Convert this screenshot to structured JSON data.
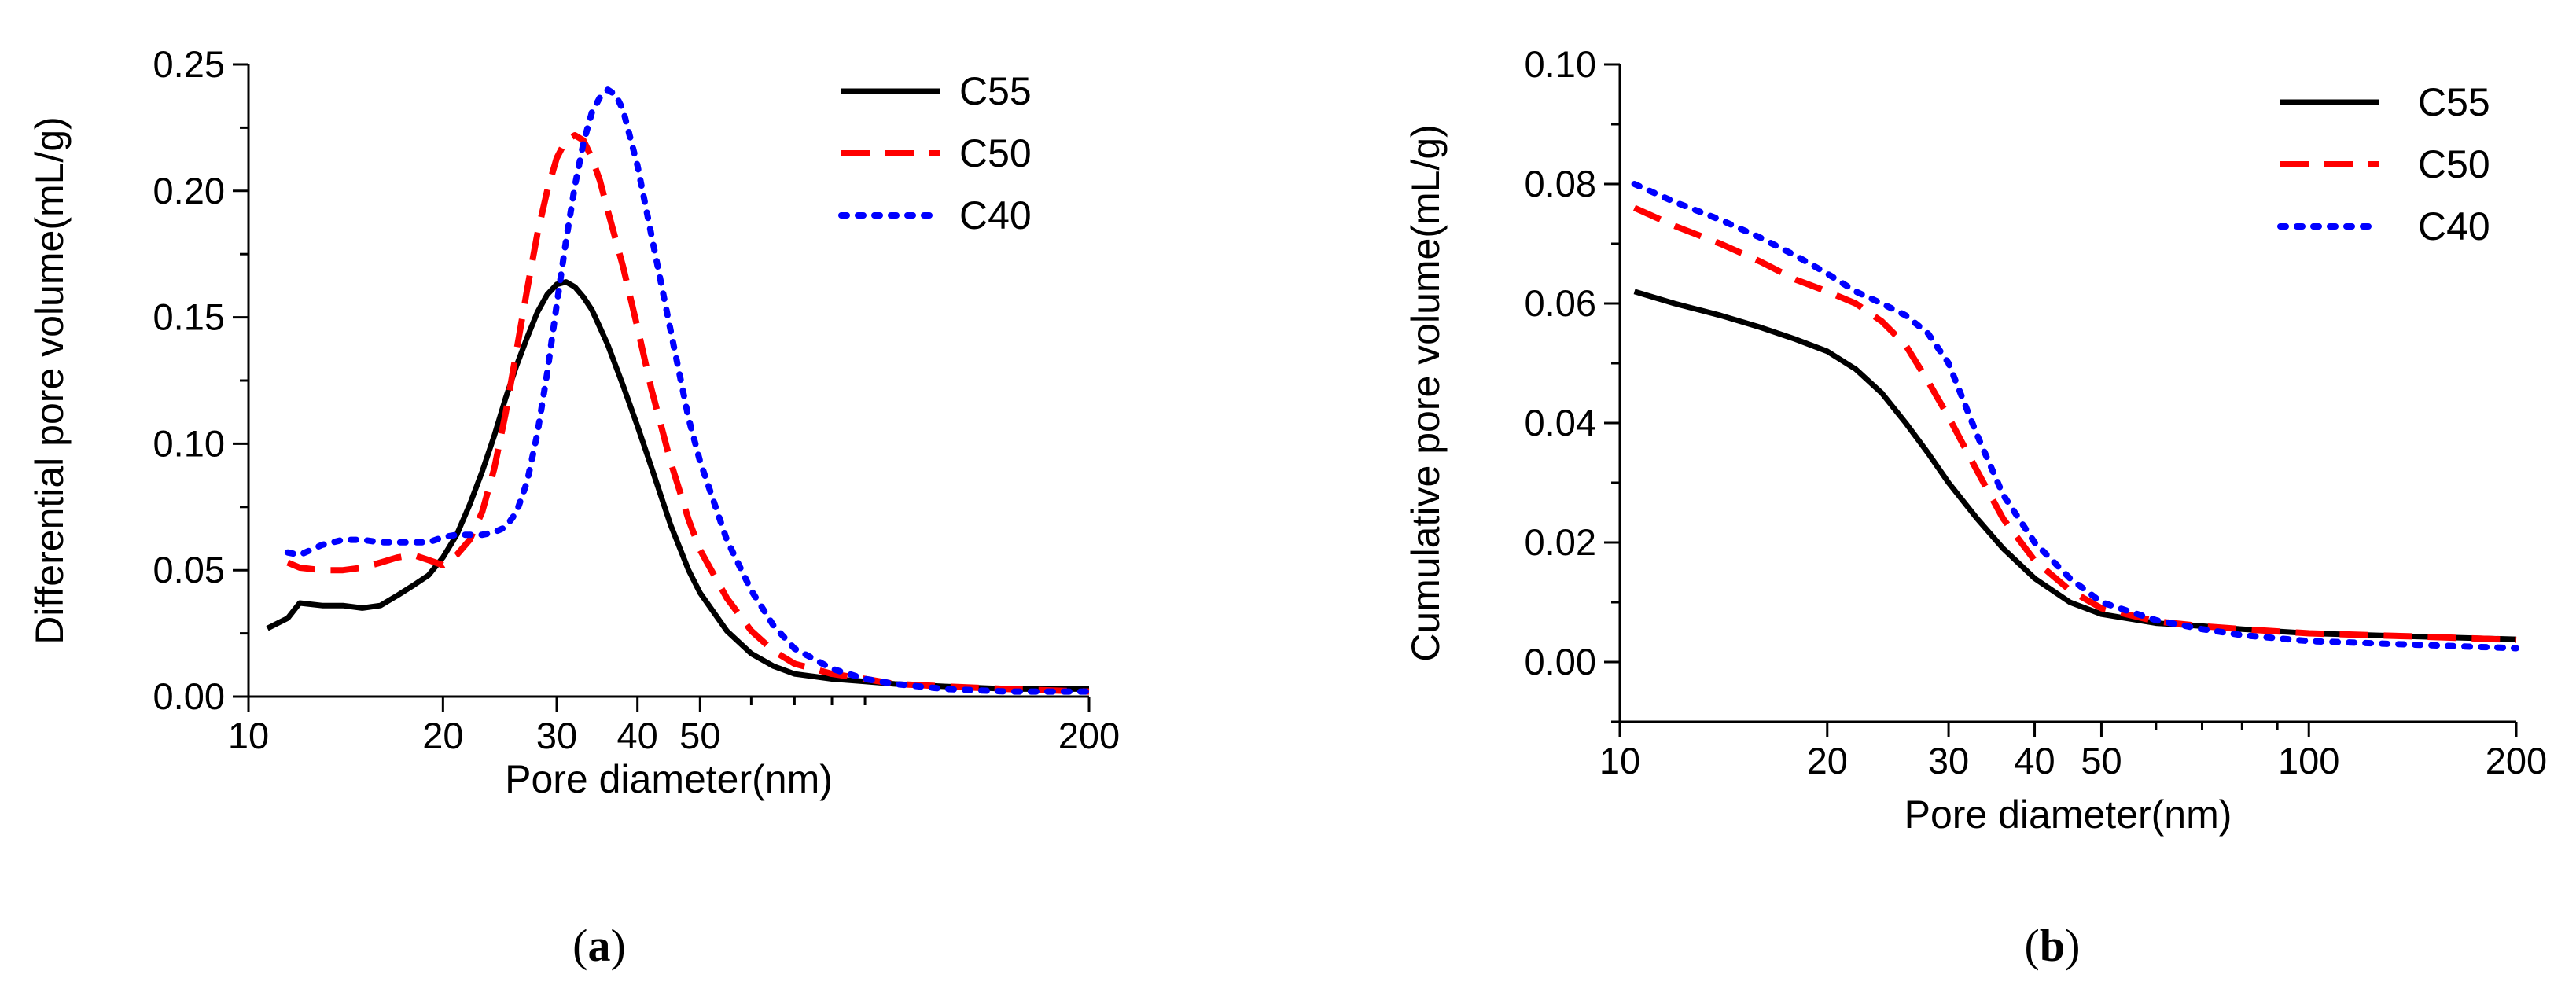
{
  "chart_data": [
    {
      "type": "line",
      "panel": "a",
      "caption": {
        "open": "(",
        "letter": "a",
        "close": ")"
      },
      "xlabel": "Pore diameter(nm)",
      "ylabel": "Differential pore volume(mL/g)",
      "xscale": "log",
      "xlim": [
        10,
        200
      ],
      "ylim": [
        0,
        0.25
      ],
      "xticks": [
        10,
        20,
        30,
        40,
        50,
        200
      ],
      "xtick_labels": [
        "10",
        "20",
        "30",
        "40",
        "50",
        "200"
      ],
      "yticks": [
        0,
        0.05,
        0.1,
        0.15,
        0.2,
        0.25
      ],
      "ytick_labels": [
        "0.00",
        "0.05",
        "0.10",
        "0.15",
        "0.20",
        "0.25"
      ],
      "legend_position": "top-right",
      "series": [
        {
          "name": "C55",
          "color": "#000000",
          "dash": "solid",
          "x": [
            10.7,
            11.5,
            12,
            13,
            14,
            15,
            16,
            17,
            18,
            19,
            20,
            21,
            22,
            23,
            24,
            25,
            26,
            27,
            28,
            29,
            30,
            31,
            32,
            33,
            34,
            35,
            36,
            38,
            40,
            42,
            45,
            48,
            50,
            55,
            60,
            65,
            70,
            80,
            90,
            100,
            120,
            150,
            200
          ],
          "values": [
            0.027,
            0.031,
            0.037,
            0.036,
            0.036,
            0.035,
            0.036,
            0.04,
            0.044,
            0.048,
            0.055,
            0.064,
            0.076,
            0.089,
            0.103,
            0.118,
            0.131,
            0.142,
            0.152,
            0.159,
            0.163,
            0.164,
            0.162,
            0.158,
            0.153,
            0.146,
            0.139,
            0.123,
            0.107,
            0.091,
            0.068,
            0.05,
            0.041,
            0.026,
            0.017,
            0.012,
            0.009,
            0.007,
            0.006,
            0.005,
            0.004,
            0.003,
            0.003
          ]
        },
        {
          "name": "C50",
          "color": "#ff0000",
          "dash": "dashed",
          "x": [
            11.5,
            12,
            13,
            14,
            15,
            16,
            17,
            18,
            19,
            20,
            21,
            22,
            23,
            24,
            25,
            26,
            27,
            28,
            29,
            30,
            31,
            32,
            33,
            34,
            35,
            36,
            38,
            40,
            42,
            45,
            48,
            50,
            55,
            60,
            65,
            70,
            80,
            90,
            100,
            120,
            150,
            200
          ],
          "values": [
            0.053,
            0.051,
            0.05,
            0.05,
            0.051,
            0.053,
            0.055,
            0.056,
            0.054,
            0.052,
            0.056,
            0.062,
            0.073,
            0.09,
            0.112,
            0.137,
            0.161,
            0.183,
            0.2,
            0.213,
            0.22,
            0.222,
            0.22,
            0.213,
            0.204,
            0.192,
            0.17,
            0.146,
            0.122,
            0.093,
            0.07,
            0.058,
            0.039,
            0.026,
            0.018,
            0.013,
            0.009,
            0.007,
            0.005,
            0.004,
            0.003,
            0.002
          ]
        },
        {
          "name": "C40",
          "color": "#0000ff",
          "dash": "dotted",
          "x": [
            11.5,
            12,
            13,
            14,
            15,
            16,
            17,
            18,
            19,
            20,
            21,
            22,
            23,
            24,
            25,
            26,
            27,
            28,
            29,
            30,
            31,
            32,
            33,
            34,
            35,
            36,
            37,
            38,
            40,
            42,
            45,
            48,
            50,
            55,
            60,
            65,
            70,
            80,
            90,
            100,
            120,
            150,
            200
          ],
          "values": [
            0.057,
            0.056,
            0.06,
            0.062,
            0.062,
            0.061,
            0.061,
            0.061,
            0.061,
            0.063,
            0.064,
            0.064,
            0.064,
            0.065,
            0.067,
            0.073,
            0.085,
            0.104,
            0.128,
            0.155,
            0.18,
            0.202,
            0.219,
            0.231,
            0.237,
            0.24,
            0.238,
            0.232,
            0.21,
            0.183,
            0.145,
            0.11,
            0.093,
            0.062,
            0.042,
            0.028,
            0.019,
            0.011,
            0.007,
            0.005,
            0.003,
            0.002,
            0.002
          ]
        }
      ]
    },
    {
      "type": "line",
      "panel": "b",
      "caption": {
        "open": "(",
        "letter": "b",
        "close": ")"
      },
      "xlabel": "Pore diameter(nm)",
      "ylabel": "Cumulative pore volume(mL/g)",
      "xscale": "log",
      "xlim": [
        10,
        200
      ],
      "ylim": [
        -0.01,
        0.1
      ],
      "xticks": [
        10,
        20,
        30,
        40,
        50,
        100,
        200
      ],
      "xtick_labels": [
        "10",
        "20",
        "30",
        "40",
        "50",
        "100",
        "200"
      ],
      "yticks": [
        0,
        0.02,
        0.04,
        0.06,
        0.08,
        0.1
      ],
      "ytick_labels": [
        "0.00",
        "0.02",
        "0.04",
        "0.06",
        "0.08",
        "0.10"
      ],
      "legend_position": "top-right",
      "series": [
        {
          "name": "C55",
          "color": "#000000",
          "dash": "solid",
          "x": [
            10.5,
            12,
            14,
            16,
            18,
            20,
            22,
            24,
            26,
            28,
            30,
            33,
            36,
            40,
            45,
            50,
            60,
            70,
            80,
            100,
            150,
            200
          ],
          "values": [
            0.062,
            0.06,
            0.058,
            0.056,
            0.054,
            0.052,
            0.049,
            0.045,
            0.04,
            0.035,
            0.03,
            0.024,
            0.019,
            0.014,
            0.01,
            0.008,
            0.0065,
            0.006,
            0.0055,
            0.0048,
            0.0042,
            0.0038
          ]
        },
        {
          "name": "C50",
          "color": "#ff0000",
          "dash": "dashed",
          "x": [
            10.5,
            12,
            14,
            16,
            18,
            20,
            22,
            24,
            26,
            28,
            30,
            33,
            36,
            40,
            45,
            50,
            60,
            70,
            80,
            100,
            150,
            200
          ],
          "values": [
            0.076,
            0.073,
            0.07,
            0.067,
            0.064,
            0.062,
            0.06,
            0.057,
            0.053,
            0.047,
            0.041,
            0.032,
            0.024,
            0.017,
            0.012,
            0.009,
            0.0068,
            0.006,
            0.0055,
            0.0048,
            0.0042,
            0.0037
          ]
        },
        {
          "name": "C40",
          "color": "#0000ff",
          "dash": "dotted",
          "x": [
            10.5,
            12,
            14,
            16,
            18,
            20,
            22,
            24,
            26,
            28,
            30,
            33,
            36,
            40,
            45,
            50,
            60,
            70,
            80,
            100,
            150,
            200
          ],
          "values": [
            0.08,
            0.077,
            0.074,
            0.071,
            0.068,
            0.065,
            0.062,
            0.06,
            0.058,
            0.055,
            0.05,
            0.038,
            0.028,
            0.02,
            0.014,
            0.01,
            0.007,
            0.0055,
            0.0045,
            0.0035,
            0.0028,
            0.0023
          ]
        }
      ]
    }
  ]
}
